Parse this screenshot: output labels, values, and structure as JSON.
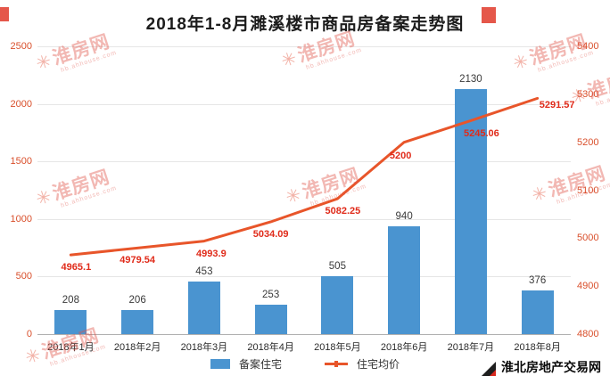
{
  "title": "2018年1-8月濉溪楼市商品房备案走势图",
  "chart_data": {
    "type": "bar",
    "combo": "bar+line",
    "title": "2018年1-8月濉溪楼市商品房备案走势图",
    "categories": [
      "2018年1月",
      "2018年2月",
      "2018年3月",
      "2018年4月",
      "2018年5月",
      "2018年6月",
      "2018年7月",
      "2018年8月"
    ],
    "series": [
      {
        "name": "备案住宅",
        "kind": "bar",
        "axis": "left",
        "values": [
          208,
          206,
          453,
          253,
          505,
          940,
          2130,
          376
        ]
      },
      {
        "name": "住宅均价",
        "kind": "line",
        "axis": "right",
        "values": [
          4965.1,
          4979.54,
          4993.9,
          5034.09,
          5082.25,
          5200,
          5245.06,
          5291.57
        ]
      }
    ],
    "left_axis": {
      "min": 0,
      "max": 2500,
      "ticks": [
        0,
        500,
        1000,
        1500,
        2000,
        2500
      ]
    },
    "right_axis": {
      "min": 4800,
      "max": 5400,
      "ticks": [
        4800,
        4900,
        5000,
        5100,
        5200,
        5300,
        5400
      ]
    },
    "grid": true,
    "legend_position": "bottom"
  },
  "colors": {
    "bar": "#4a94d0",
    "line": "#e8552a",
    "axis_tick": "#d94f2b",
    "line_label": "#e02b1a",
    "grid": "#e6e6e6"
  },
  "watermark": {
    "brand": "淮房网",
    "site": "hb.ahhouse.com"
  },
  "footer": {
    "brand": "淮北房地产交易网"
  }
}
